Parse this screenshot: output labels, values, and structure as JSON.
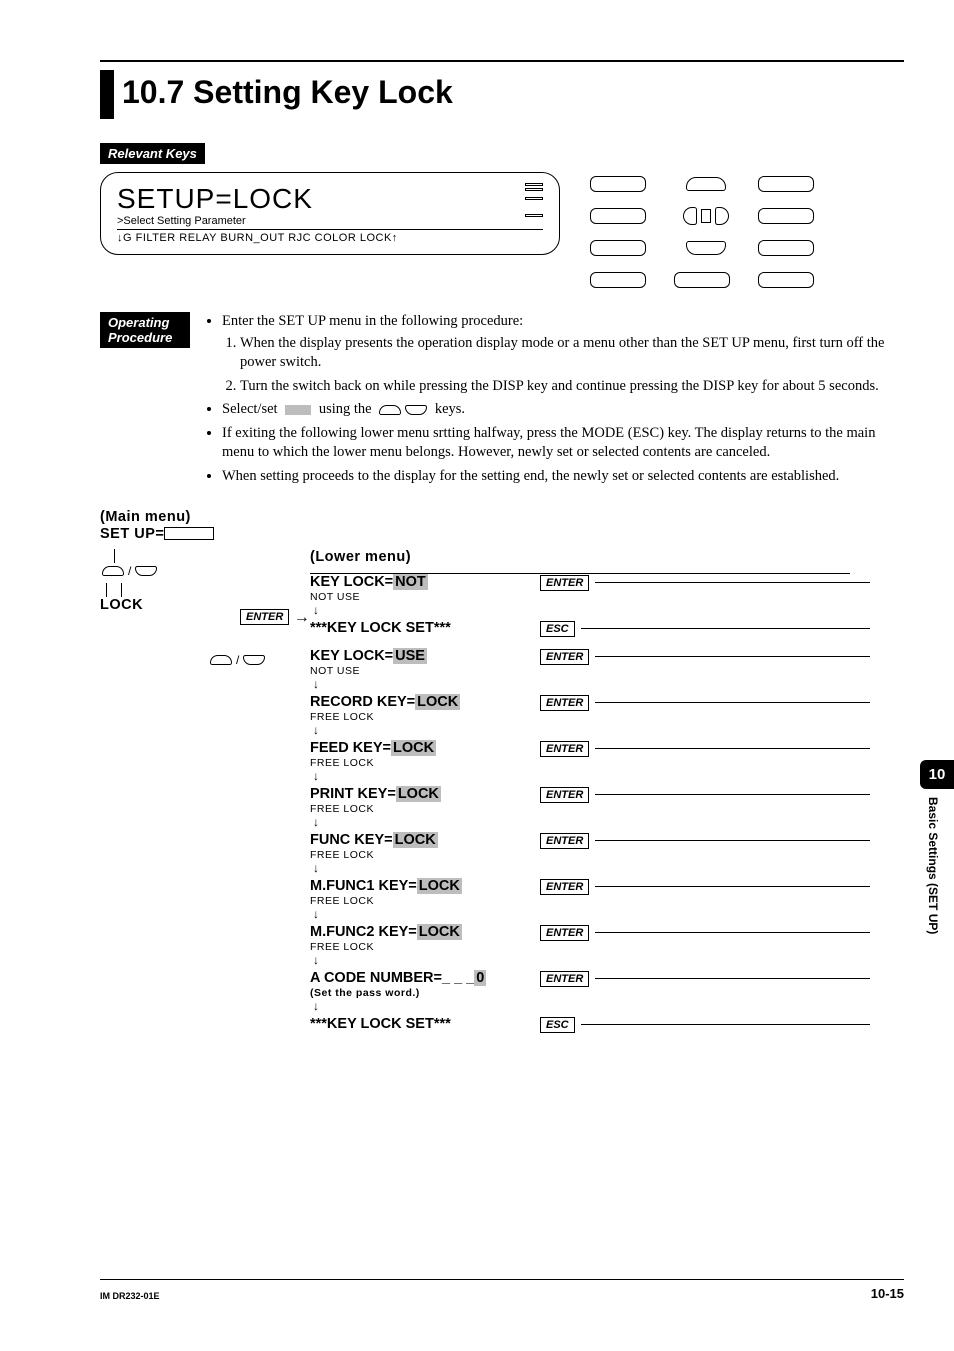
{
  "colors": {
    "text": "#000000",
    "bg": "#ffffff",
    "highlight": "#bdbdbd"
  },
  "typography": {
    "title_family": "Arial, Helvetica, sans-serif",
    "body_family": "Times New Roman, Times, serif",
    "title_size_pt": 24,
    "body_size_pt": 11,
    "flow_bold_size_pt": 11,
    "flow_sub_size_pt": 8
  },
  "title": "10.7  Setting Key Lock",
  "labels": {
    "relevant_keys": "Relevant Keys",
    "operating_procedure": "Operating Procedure"
  },
  "lcd": {
    "line1": "SETUP=LOCK",
    "line2": ">Select Setting Parameter",
    "line3": "↓G  FILTER  RELAY  BURN_OUT  RJC  COLOR  LOCK↑"
  },
  "procedure": {
    "b0": "Enter the SET UP menu in the following procedure:",
    "l1": "When the display presents the operation display mode or a menu other than the SET UP menu, first turn off the power switch.",
    "l2": "Turn the switch back on while pressing the DISP key and continue pressing the DISP key for about 5 seconds.",
    "b1a": "Select/set",
    "b1b": "using the",
    "b1c": "keys.",
    "b2": "If exiting the following lower menu srtting halfway, press the MODE (ESC) key.  The display returns to the main menu to which the lower menu belongs.  However, newly set or selected contents are canceled.",
    "b3": "When setting proceeds to the display for the setting end, the newly set or selected contents are established."
  },
  "flow": {
    "main_menu_label": "(Main menu)",
    "setup_label": "SET UP=",
    "lock": "LOCK",
    "lower_menu_label": "(Lower menu)",
    "enter": "ENTER",
    "esc": "ESC",
    "steps": [
      {
        "line_pre": "KEY LOCK=",
        "hl": "NOT",
        "line_post": "",
        "sub": "NOT USE",
        "btn": "ENTER",
        "arrow": true
      },
      {
        "line_pre": "***KEY LOCK SET***",
        "hl": "",
        "line_post": "",
        "sub": "",
        "btn": "ESC",
        "arrow": false
      },
      {
        "line_pre": "KEY LOCK=",
        "hl": "USE",
        "line_post": "",
        "sub": "NOT USE",
        "btn": "ENTER",
        "arrow": true
      },
      {
        "line_pre": "RECORD KEY=",
        "hl": "LOCK",
        "line_post": "",
        "sub": "FREE LOCK",
        "btn": "ENTER",
        "arrow": true
      },
      {
        "line_pre": "FEED KEY=",
        "hl": "LOCK",
        "line_post": "",
        "sub": "FREE LOCK",
        "btn": "ENTER",
        "arrow": true
      },
      {
        "line_pre": "PRINT KEY=",
        "hl": "LOCK",
        "line_post": "",
        "sub": "FREE LOCK",
        "btn": "ENTER",
        "arrow": true
      },
      {
        "line_pre": "FUNC KEY=",
        "hl": "LOCK",
        "line_post": "",
        "sub": "FREE LOCK",
        "btn": "ENTER",
        "arrow": true
      },
      {
        "line_pre": "M.FUNC1 KEY=",
        "hl": "LOCK",
        "line_post": "",
        "sub": "FREE LOCK",
        "btn": "ENTER",
        "arrow": true
      },
      {
        "line_pre": "M.FUNC2 KEY=",
        "hl": "LOCK",
        "line_post": "",
        "sub": "FREE LOCK",
        "btn": "ENTER",
        "arrow": true
      },
      {
        "line_pre": "A CODE NUMBER=_ _ _",
        "hl": "0",
        "line_post": "",
        "sub": "(Set the pass word.)",
        "btn": "ENTER",
        "arrow": true,
        "sub_bold": true
      },
      {
        "line_pre": "***KEY LOCK SET***",
        "hl": "",
        "line_post": "",
        "sub": "",
        "btn": "ESC",
        "arrow": false
      }
    ]
  },
  "side": {
    "chapter_num": "10",
    "chapter_text": "Basic Settings (SET UP)"
  },
  "footer": {
    "left": "IM DR232-01E",
    "right": "10-15"
  }
}
